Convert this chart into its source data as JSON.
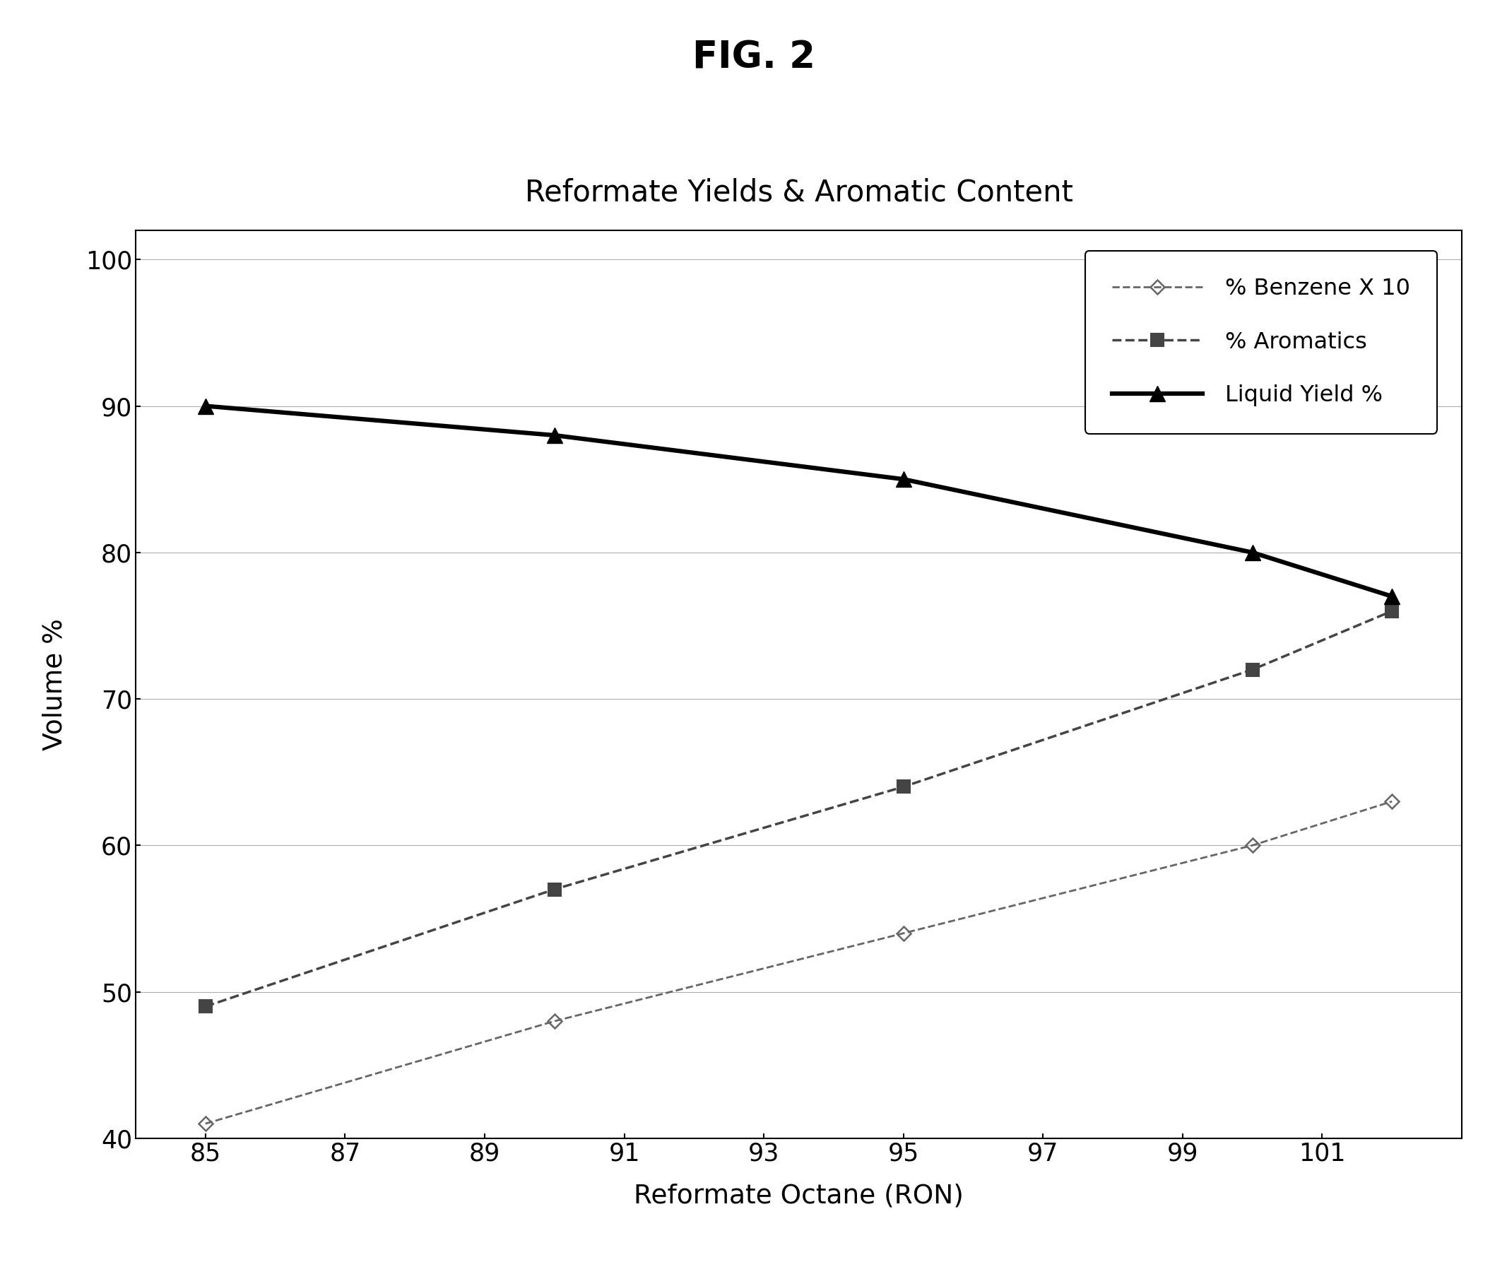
{
  "title": "FIG. 2",
  "subtitle": "Reformate Yields & Aromatic Content",
  "xlabel": "Reformate Octane (RON)",
  "ylabel": "Volume %",
  "ylim": [
    40,
    102
  ],
  "xlim": [
    84,
    103
  ],
  "yticks": [
    40,
    50,
    60,
    70,
    80,
    90,
    100
  ],
  "xticks": [
    85,
    87,
    89,
    91,
    93,
    95,
    97,
    99,
    101
  ],
  "benzene_x": [
    85,
    90,
    95,
    100,
    102
  ],
  "benzene_y": [
    41,
    48,
    54,
    60,
    63
  ],
  "aromatics_x": [
    85,
    90,
    95,
    100,
    102
  ],
  "aromatics_y": [
    49,
    57,
    64,
    72,
    76
  ],
  "liquid_yield_x": [
    85,
    90,
    95,
    100,
    102
  ],
  "liquid_yield_y": [
    90,
    88,
    85,
    80,
    77
  ],
  "benzene_color": "#666666",
  "aromatics_color": "#444444",
  "liquid_yield_color": "#000000",
  "background_color": "#ffffff",
  "grid_color": "#999999",
  "legend_labels": [
    "% Benzene X 10",
    "% Aromatics",
    "Liquid Yield %"
  ],
  "title_fontsize": 38,
  "subtitle_fontsize": 30,
  "axis_label_fontsize": 27,
  "tick_fontsize": 25
}
